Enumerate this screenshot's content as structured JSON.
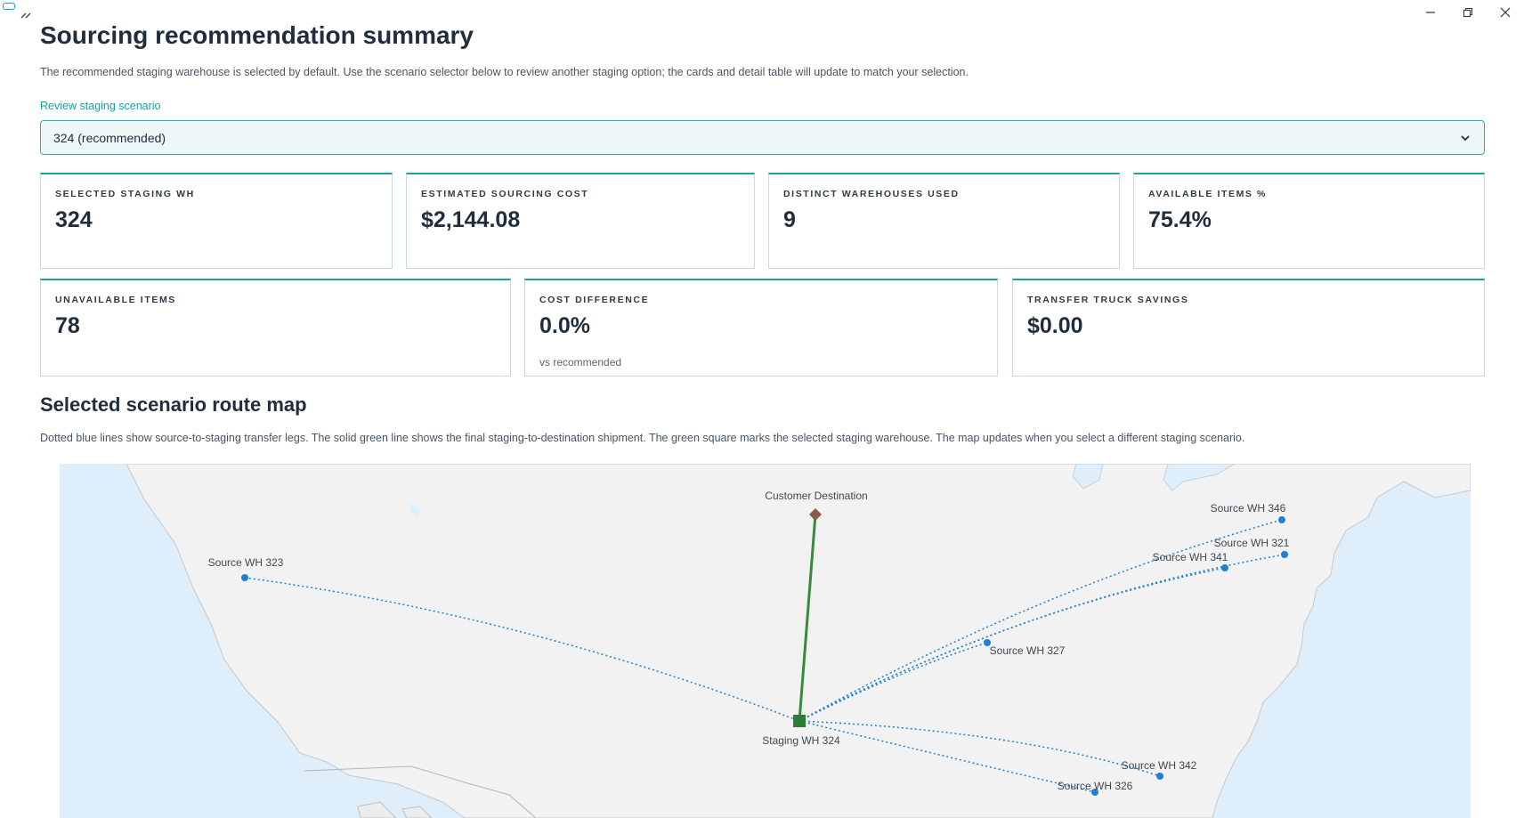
{
  "page": {
    "title": "Sourcing recommendation summary",
    "intro": "The recommended staging warehouse is selected by default. Use the scenario selector below to review another staging option; the cards and detail table will update to match your selection."
  },
  "selector": {
    "label": "Review staging scenario",
    "value": "324 (recommended)"
  },
  "cards": [
    {
      "label": "SELECTED STAGING WH",
      "value": "324"
    },
    {
      "label": "ESTIMATED SOURCING COST",
      "value": "$2,144.08"
    },
    {
      "label": "DISTINCT WAREHOUSES USED",
      "value": "9"
    },
    {
      "label": "AVAILABLE ITEMS %",
      "value": "75.4%"
    },
    {
      "label": "UNAVAILABLE ITEMS",
      "value": "78"
    },
    {
      "label": "COST DIFFERENCE",
      "value": "0.0%",
      "sub": "vs recommended"
    },
    {
      "label": "TRANSFER TRUCK SAVINGS",
      "value": "$0.00"
    }
  ],
  "map_section": {
    "title": "Selected scenario route map",
    "description": "Dotted blue lines show source-to-staging transfer legs. The solid green line shows the final staging-to-destination shipment. The green square marks the selected staging warehouse. The map updates when you select a different staging scenario."
  },
  "map": {
    "destination": "Customer Destination",
    "staging": "Staging WH 324",
    "sources": [
      "Source WH 323",
      "Source WH 346",
      "Source WH 321",
      "Source WH 341",
      "Source WH 327",
      "Source WH 342",
      "Source WH 326"
    ],
    "colors": {
      "transfer_leg": "#1f7fd0",
      "final_shipment": "#3a8a3e",
      "staging_marker": "#2e7d32",
      "destination_marker": "#8d5a4a",
      "land": "#f2f2f2",
      "water": "#deeefa"
    }
  },
  "window": {
    "controls": [
      "minimize-icon",
      "restore-icon",
      "close-icon"
    ]
  }
}
